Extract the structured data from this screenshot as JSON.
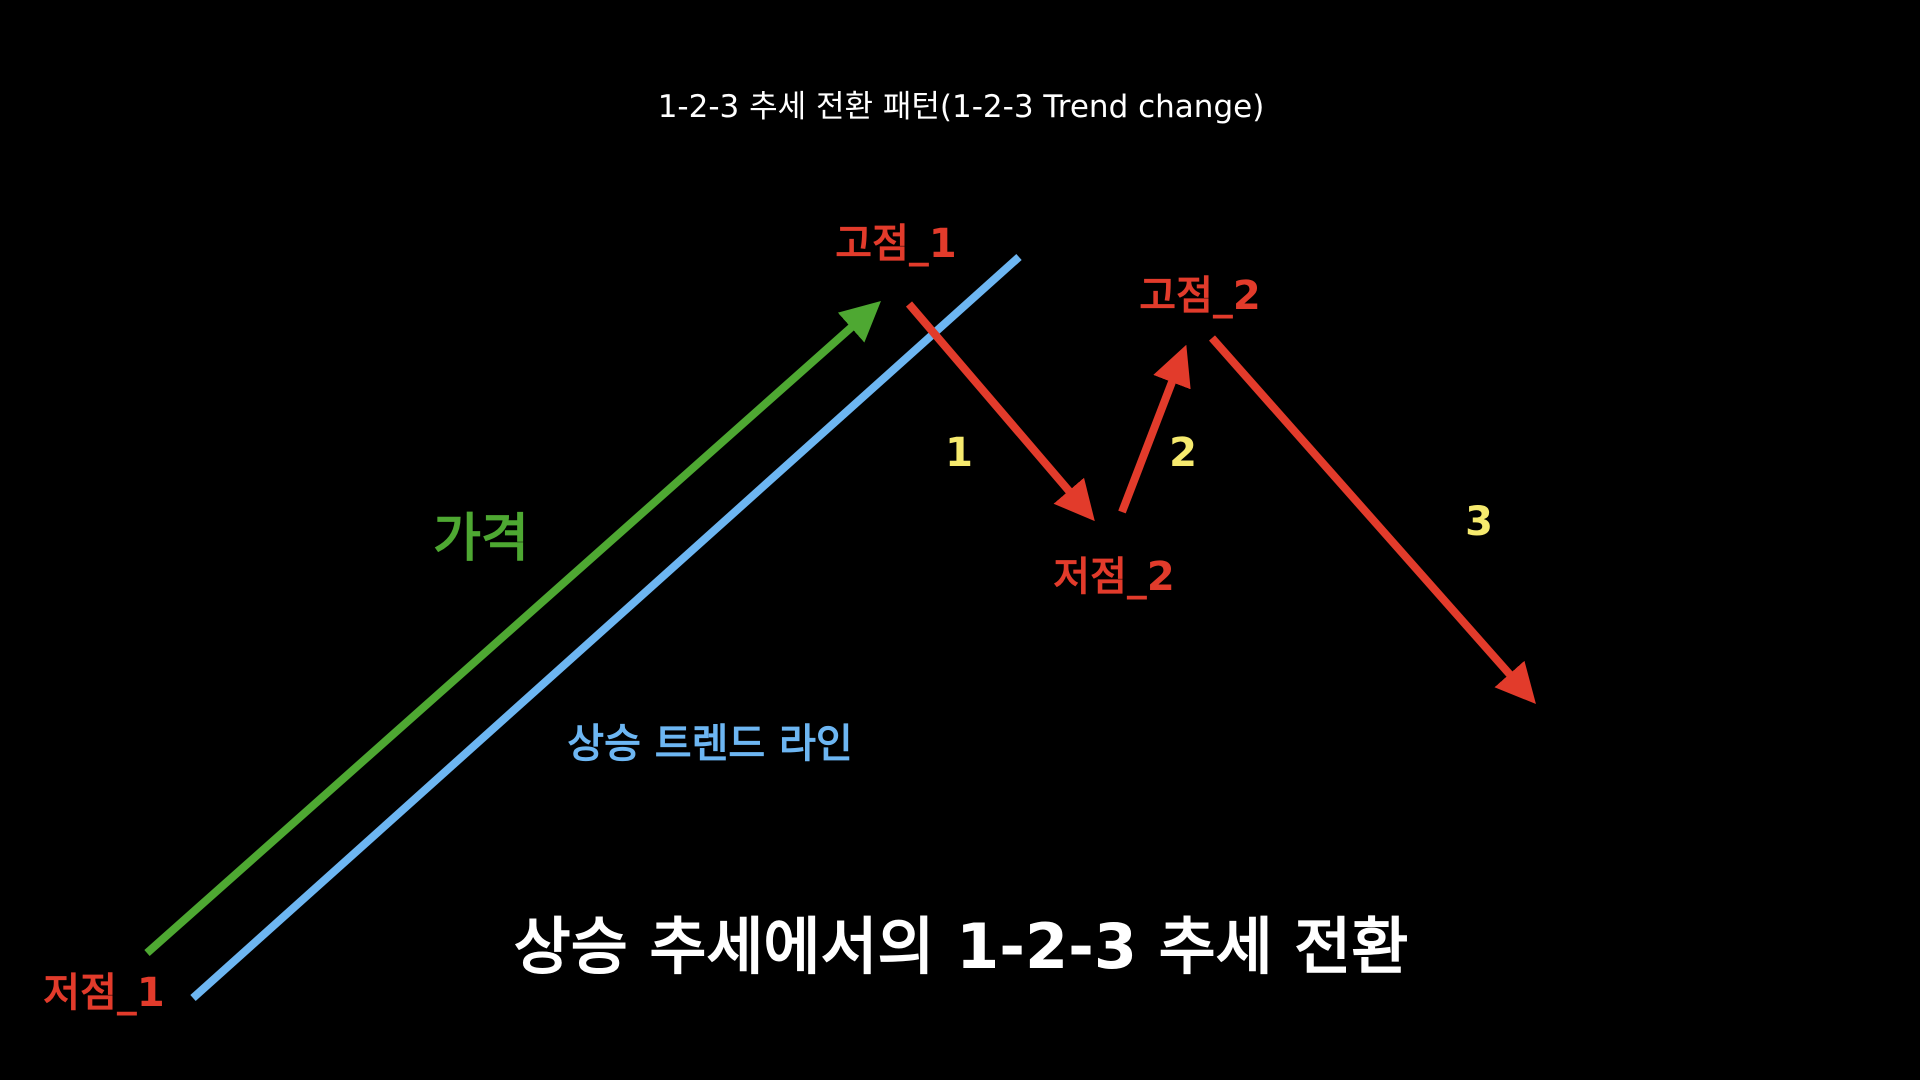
{
  "title": "1-2-3 추세 전환 패턴(1-2-3 Trend change)",
  "labels": {
    "high_1": "고점_1",
    "high_2": "고점_2",
    "low_1": "저점_1",
    "low_2": "저점_2",
    "price": "가격",
    "uptrend_line": "상승 트렌드 라인",
    "step_1": "1",
    "step_2": "2",
    "step_3": "3"
  },
  "caption": "상승 추세에서의 1-2-3 추세 전환",
  "colors": {
    "background": "#000000",
    "point_labels": "#e23b2b",
    "price_arrow": "#4ea832",
    "trend_line": "#6db6f2",
    "step_numbers": "#f6ea6e",
    "text": "#ffffff"
  }
}
